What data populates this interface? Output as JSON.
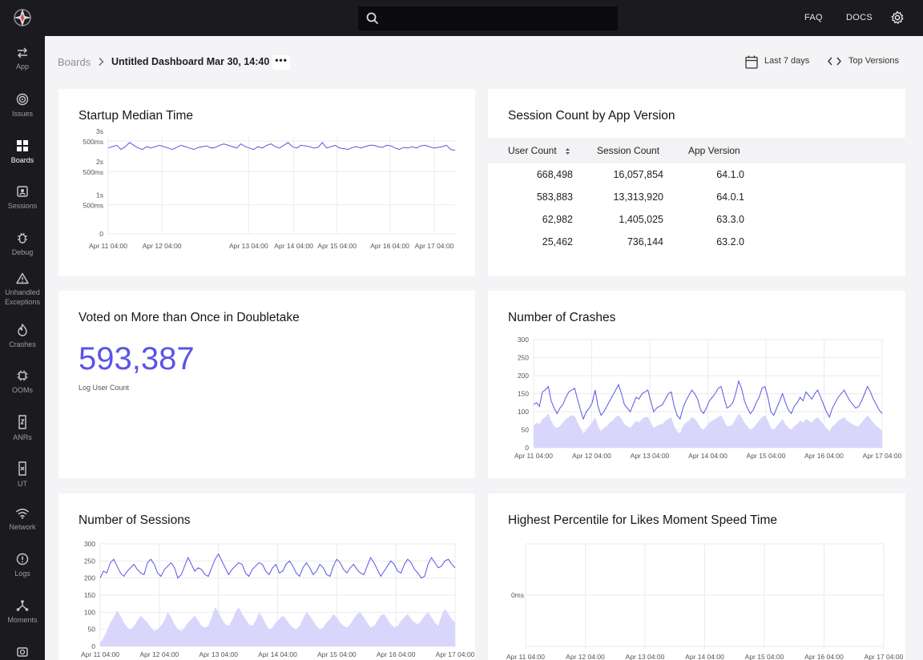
{
  "topbar": {
    "search_placeholder": "",
    "faq": "FAQ",
    "docs": "DOCS"
  },
  "sidebar": {
    "items": [
      {
        "label": "App",
        "icon": "swap-arrows-icon"
      },
      {
        "label": "Issues",
        "icon": "target-icon"
      },
      {
        "label": "Boards",
        "icon": "grid-icon",
        "active": true
      },
      {
        "label": "Sessions",
        "icon": "session-icon"
      },
      {
        "label": "Debug",
        "icon": "bug-icon"
      },
      {
        "label": "Unhandled",
        "label2": "Exceptions",
        "icon": "warning-icon"
      },
      {
        "label": "Crashes",
        "icon": "flame-icon"
      },
      {
        "label": "OOMs",
        "icon": "chip-icon"
      },
      {
        "label": "ANRs",
        "icon": "anr-icon"
      },
      {
        "label": "UT",
        "icon": "ut-icon"
      },
      {
        "label": "Network",
        "icon": "wifi-icon"
      },
      {
        "label": "Logs",
        "icon": "info-icon"
      },
      {
        "label": "Moments",
        "icon": "network-graph-icon"
      }
    ]
  },
  "breadcrumb": {
    "root": "Boards",
    "title": "Untitled Dashboard Mar 30, 14:40",
    "more": "•••"
  },
  "header": {
    "date_range": "Last 7 days",
    "version_filter": "Top Versions"
  },
  "colors": {
    "accent": "#5a55e6",
    "series_line": "#5a55e6",
    "series_fill": "#d8d6fa"
  },
  "cards": {
    "startup": {
      "title": "Startup Median Time"
    },
    "sessions_by_version": {
      "title": "Session Count by App Version",
      "columns": [
        "User Count",
        "Session Count",
        "App Version"
      ],
      "rows": [
        [
          "668,498",
          "16,057,854",
          "64.1.0"
        ],
        [
          "583,883",
          "13,313,920",
          "64.0.1"
        ],
        [
          "62,982",
          "1,405,025",
          "63.3.0"
        ],
        [
          "25,462",
          "736,144",
          "63.2.0"
        ]
      ]
    },
    "voted": {
      "title": "Voted on More than Once in Doubletake",
      "value": "593,387",
      "sub": "Log User Count"
    },
    "crashes": {
      "title": "Number of Crashes"
    },
    "sessions": {
      "title": "Number of Sessions"
    },
    "likes": {
      "title": "Highest Percentile for Likes Moment Speed Time"
    }
  },
  "chart_data": [
    {
      "type": "line",
      "title": "Startup Median Time",
      "y_tick_labels": [
        "0",
        "1s\n500ms",
        "2s\n500ms",
        "3s\n500ms"
      ],
      "ylim": [
        0,
        3.5
      ],
      "x_tick_labels": [
        "Apr 11 04:00",
        "Apr 12 04:00",
        "Apr 13 04:00",
        "Apr 14 04:00",
        "Apr 15 04:00",
        "Apr 16 04:00",
        "Apr 17 04:00"
      ],
      "grid": true,
      "series": [
        {
          "values": [
            3.1,
            3.15,
            3.2,
            3.05,
            3.15,
            3.3,
            3.2,
            3.1,
            3.05,
            3.15,
            3.1,
            3.15,
            3.2,
            3.15,
            3.1,
            3.05,
            3.12,
            3.2,
            3.15,
            3.1,
            3.05,
            3.12,
            3.15,
            3.18,
            3.1,
            3.12,
            3.2,
            3.25,
            3.2,
            3.15,
            3.1,
            3.25,
            3.15,
            3.1,
            3.05,
            3.15,
            3.1,
            3.2,
            3.25,
            3.15,
            3.1,
            3.2,
            3.3,
            3.15,
            3.1,
            3.2,
            3.18,
            3.15,
            3.1,
            3.12,
            3.3,
            3.1,
            3.15,
            3.2,
            3.1,
            3.08,
            3.05,
            3.12,
            3.15,
            3.1,
            3.15,
            3.2,
            3.2,
            3.15,
            3.12,
            3.2,
            3.18,
            3.1,
            3.05,
            3.12,
            3.1,
            3.15,
            3.1,
            3.18,
            3.2,
            3.15,
            3.1,
            3.12,
            3.15,
            3.2,
            3.05,
            3.02
          ]
        }
      ]
    },
    {
      "type": "area",
      "title": "Number of Crashes",
      "y_ticks": [
        0,
        50,
        100,
        150,
        200,
        250,
        300
      ],
      "ylim": [
        0,
        300
      ],
      "x_tick_labels": [
        "Apr 11 04:00",
        "Apr 12 04:00",
        "Apr 13 04:00",
        "Apr 14 04:00",
        "Apr 15 04:00",
        "Apr 16 04:00",
        "Apr 17 04:00"
      ],
      "grid": true,
      "series": [
        {
          "values": [
            120,
            125,
            115,
            155,
            160,
            170,
            130,
            110,
            95,
            110,
            120,
            140,
            155,
            160,
            165,
            135,
            105,
            80,
            100,
            110,
            125,
            160,
            115,
            90,
            100,
            115,
            130,
            145,
            160,
            175,
            150,
            120,
            110,
            100,
            120,
            140,
            135,
            150,
            155,
            160,
            130,
            100,
            110,
            115,
            120,
            135,
            150,
            155,
            115,
            90,
            80,
            110,
            130,
            145,
            160,
            150,
            135,
            105,
            95,
            110,
            130,
            140,
            150,
            165,
            170,
            140,
            110,
            115,
            125,
            150,
            185,
            165,
            130,
            110,
            95,
            105,
            125,
            140,
            165,
            170,
            140,
            100,
            90,
            110,
            130,
            150,
            125,
            105,
            95,
            115,
            125,
            140,
            130,
            155,
            145,
            135,
            150,
            160,
            140,
            120,
            100,
            85,
            110,
            125,
            140,
            150,
            160,
            145,
            130,
            120,
            110,
            115,
            130,
            150,
            170,
            155,
            135,
            120,
            105,
            95
          ]
        },
        {
          "values": [
            60,
            70,
            65,
            80,
            85,
            95,
            75,
            60,
            55,
            60,
            70,
            80,
            85,
            90,
            88,
            70,
            55,
            40,
            50,
            60,
            70,
            85,
            60,
            45,
            55,
            60,
            70,
            75,
            85,
            90,
            80,
            65,
            60,
            55,
            65,
            75,
            70,
            80,
            85,
            85,
            70,
            55,
            60,
            65,
            65,
            75,
            80,
            85,
            60,
            45,
            40,
            60,
            70,
            75,
            85,
            80,
            70,
            55,
            50,
            60,
            70,
            75,
            80,
            85,
            90,
            75,
            60,
            60,
            65,
            80,
            95,
            85,
            70,
            60,
            50,
            55,
            65,
            75,
            85,
            90,
            75,
            55,
            50,
            60,
            70,
            80,
            65,
            55,
            50,
            60,
            65,
            75,
            70,
            80,
            75,
            70,
            80,
            85,
            75,
            65,
            55,
            45,
            60,
            65,
            75,
            80,
            85,
            75,
            70,
            65,
            60,
            60,
            70,
            80,
            90,
            80,
            70,
            60,
            55,
            45
          ]
        }
      ]
    },
    {
      "type": "area",
      "title": "Number of Sessions",
      "y_ticks": [
        0,
        50,
        100,
        150,
        200,
        250,
        300
      ],
      "ylim": [
        0,
        300
      ],
      "x_tick_labels": [
        "Apr 11 04:00",
        "Apr 12 04:00",
        "Apr 13 04:00",
        "Apr 14 04:00",
        "Apr 15 04:00",
        "Apr 16 04:00",
        "Apr 17 04:00"
      ],
      "grid": true,
      "series": [
        {
          "values": [
            200,
            220,
            215,
            245,
            255,
            235,
            215,
            205,
            220,
            230,
            240,
            225,
            215,
            210,
            245,
            255,
            240,
            215,
            205,
            225,
            235,
            245,
            230,
            200,
            210,
            235,
            260,
            240,
            220,
            230,
            225,
            210,
            205,
            230,
            255,
            270,
            250,
            230,
            210,
            225,
            235,
            245,
            240,
            215,
            205,
            225,
            235,
            245,
            240,
            220,
            210,
            230,
            240,
            215,
            220,
            240,
            250,
            235,
            215,
            205,
            230,
            245,
            230,
            210,
            220,
            240,
            230,
            210,
            205,
            235,
            255,
            245,
            225,
            215,
            230,
            240,
            225,
            215,
            210,
            235,
            260,
            245,
            225,
            205,
            220,
            235,
            250,
            240,
            220,
            215,
            240,
            255,
            245,
            225,
            215,
            200,
            205,
            240,
            260,
            245,
            230,
            235,
            250,
            255,
            240,
            230
          ]
        },
        {
          "values": [
            10,
            25,
            45,
            70,
            85,
            105,
            90,
            70,
            55,
            50,
            60,
            75,
            90,
            80,
            70,
            55,
            45,
            50,
            60,
            75,
            100,
            85,
            65,
            50,
            45,
            55,
            70,
            80,
            90,
            75,
            60,
            55,
            60,
            85,
            115,
            100,
            80,
            65,
            60,
            75,
            100,
            115,
            95,
            80,
            65,
            60,
            75,
            100,
            85,
            65,
            50,
            55,
            70,
            80,
            90,
            80,
            65,
            55,
            50,
            60,
            80,
            100,
            90,
            75,
            60,
            50,
            55,
            70,
            80,
            95,
            85,
            70,
            60,
            55,
            65,
            80,
            95,
            100,
            85,
            70,
            55,
            60,
            75,
            90,
            95,
            80,
            65,
            55,
            60,
            75,
            85,
            95,
            80,
            70,
            65,
            75,
            90,
            100,
            85,
            70,
            60,
            90,
            110,
            95,
            80,
            70
          ]
        }
      ]
    },
    {
      "type": "line",
      "title": "Highest Percentile for Likes Moment Speed Time",
      "y_tick_labels": [
        "0ms"
      ],
      "x_tick_labels": [
        "Apr 11 04:00",
        "Apr 12 04:00",
        "Apr 13 04:00",
        "Apr 14 04:00",
        "Apr 15 04:00",
        "Apr 16 04:00",
        "Apr 17 04:00"
      ],
      "grid": true,
      "series": []
    }
  ]
}
